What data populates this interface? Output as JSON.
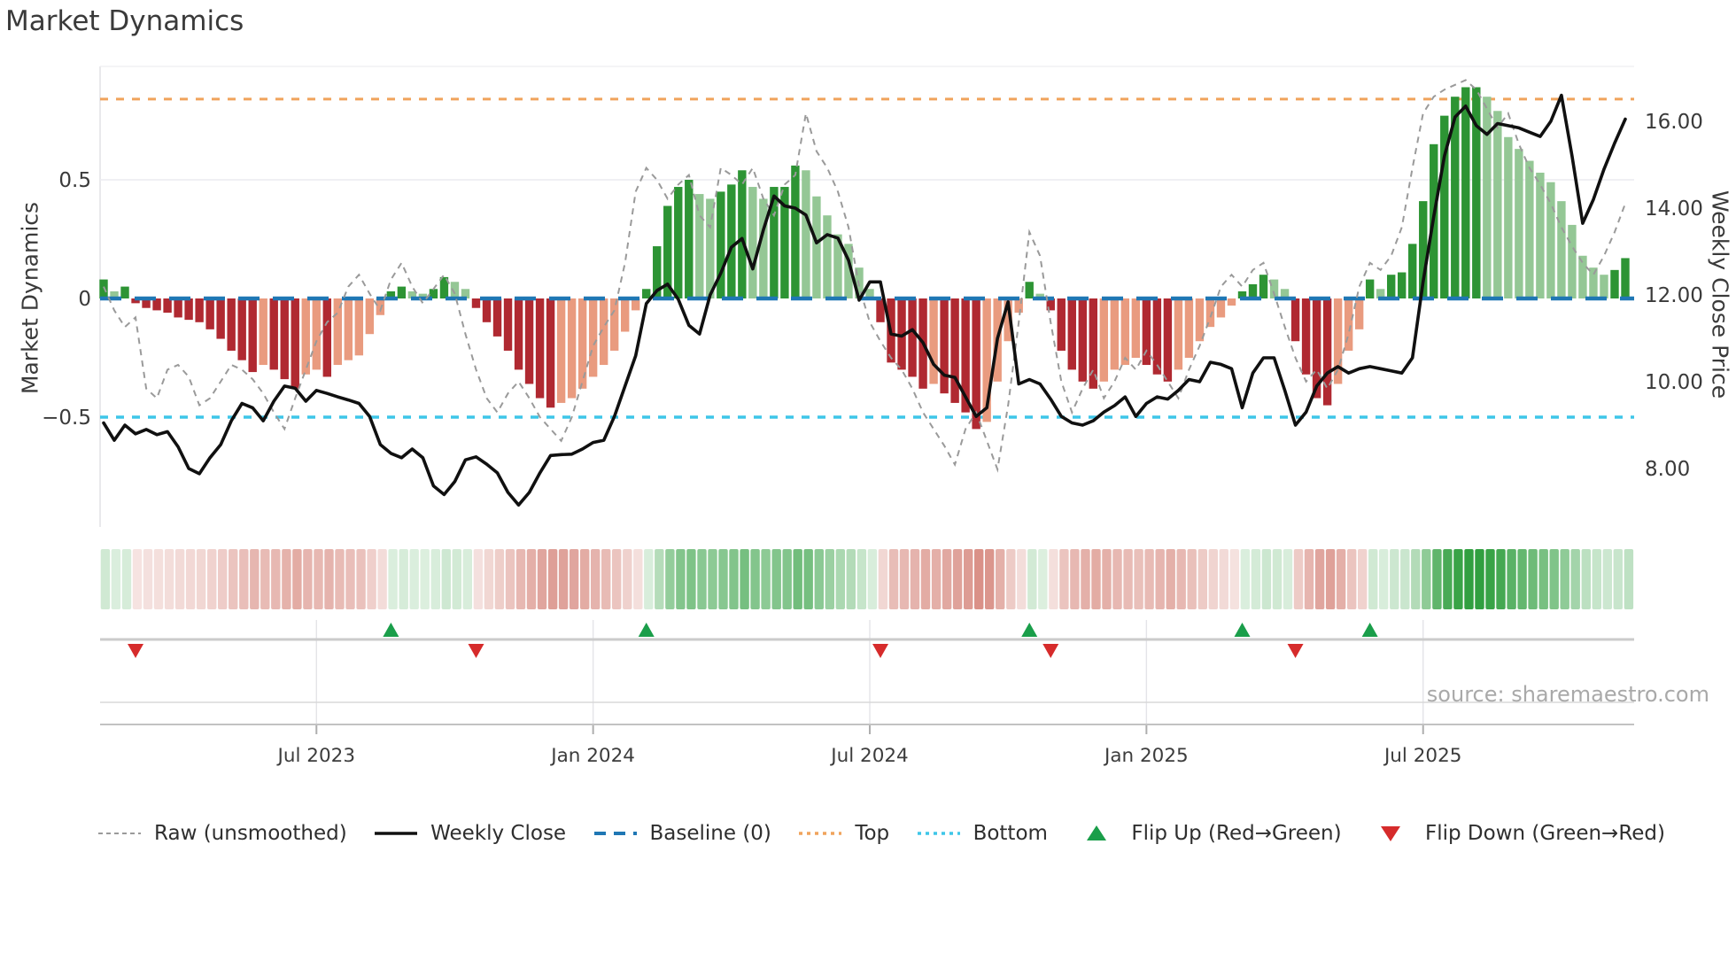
{
  "title": "Market Dynamics",
  "source": "source: sharemaestro.com",
  "axes": {
    "left_label": "Market Dynamics",
    "right_label": "Weekly Close Price",
    "left_ticks": [
      {
        "label": "0.5",
        "value": 0.5
      },
      {
        "label": "0",
        "value": 0
      },
      {
        "label": "−0.5",
        "value": -0.5
      }
    ],
    "right_ticks": [
      {
        "label": "16.00",
        "value": 16
      },
      {
        "label": "14.00",
        "value": 14
      },
      {
        "label": "12.00",
        "value": 12
      },
      {
        "label": "10.00",
        "value": 10
      },
      {
        "label": "8.00",
        "value": 8
      }
    ],
    "x_ticks": [
      {
        "label": "Jul 2023",
        "week": 20
      },
      {
        "label": "Jan 2024",
        "week": 46
      },
      {
        "label": "Jul 2024",
        "week": 72
      },
      {
        "label": "Jan 2025",
        "week": 98
      },
      {
        "label": "Jul 2025",
        "week": 124
      }
    ]
  },
  "legend": [
    {
      "label": "Raw (unsmoothed)",
      "swatch": "dash-gray"
    },
    {
      "label": "Weekly Close",
      "swatch": "solid-black"
    },
    {
      "label": "Baseline (0)",
      "swatch": "dash-blue"
    },
    {
      "label": "Top",
      "swatch": "dot-orange"
    },
    {
      "label": "Bottom",
      "swatch": "dot-cyan"
    },
    {
      "label": "Flip Up (Red→Green)",
      "swatch": "tri-up"
    },
    {
      "label": "Flip Down (Green→Red)",
      "swatch": "tri-down"
    }
  ],
  "colors": {
    "dark_green": "#2d9434",
    "light_green": "#94c795",
    "dark_red": "#b02931",
    "light_red": "#e99b7f",
    "baseline": "#1f77b4",
    "top": "#f0a35c",
    "bottom": "#3ec6e8",
    "raw": "#9a9a9a",
    "price": "#101010",
    "flip_up": "#1a9e4a",
    "flip_down": "#d62b2b",
    "grid": "#ececf0",
    "spine": "#dddde2"
  },
  "chart_data": {
    "type": "bar",
    "title": "Market Dynamics",
    "xlabel": "",
    "ylabel_left": "Market Dynamics",
    "ylabel_right": "Weekly Close Price",
    "x_is_weekly": true,
    "n_weeks": 144,
    "baseline": 0,
    "top_line": 0.84,
    "bottom_line": -0.5,
    "left_ylim": [
      -0.97,
      0.97
    ],
    "right_ylim": [
      7.0,
      17.3
    ],
    "flip_up_weeks": [
      27,
      51,
      87,
      107,
      119
    ],
    "flip_down_weeks": [
      3,
      35,
      73,
      89,
      112
    ],
    "series": [
      {
        "name": "Market Dynamics (smoothed bars)",
        "type": "bar",
        "axis": "left",
        "values": [
          0.08,
          0.03,
          0.05,
          -0.02,
          -0.04,
          -0.05,
          -0.06,
          -0.08,
          -0.09,
          -0.1,
          -0.13,
          -0.17,
          -0.22,
          -0.26,
          -0.31,
          -0.28,
          -0.3,
          -0.34,
          -0.38,
          -0.32,
          -0.3,
          -0.33,
          -0.28,
          -0.26,
          -0.24,
          -0.15,
          -0.07,
          0.03,
          0.05,
          0.03,
          0.02,
          0.04,
          0.09,
          0.07,
          0.04,
          -0.04,
          -0.1,
          -0.16,
          -0.22,
          -0.3,
          -0.36,
          -0.42,
          -0.46,
          -0.44,
          -0.42,
          -0.38,
          -0.33,
          -0.28,
          -0.22,
          -0.14,
          -0.05,
          0.04,
          0.22,
          0.39,
          0.47,
          0.5,
          0.44,
          0.42,
          0.45,
          0.48,
          0.54,
          0.47,
          0.42,
          0.47,
          0.47,
          0.56,
          0.54,
          0.43,
          0.35,
          0.27,
          0.23,
          0.13,
          0.04,
          -0.1,
          -0.27,
          -0.3,
          -0.33,
          -0.38,
          -0.36,
          -0.4,
          -0.44,
          -0.48,
          -0.55,
          -0.52,
          -0.35,
          -0.18,
          -0.06,
          0.07,
          0.02,
          -0.05,
          -0.22,
          -0.3,
          -0.35,
          -0.38,
          -0.35,
          -0.3,
          -0.28,
          -0.25,
          -0.28,
          -0.32,
          -0.35,
          -0.3,
          -0.25,
          -0.18,
          -0.12,
          -0.08,
          -0.03,
          0.03,
          0.06,
          0.1,
          0.08,
          0.04,
          -0.18,
          -0.32,
          -0.42,
          -0.45,
          -0.36,
          -0.22,
          -0.13,
          0.08,
          0.04,
          0.1,
          0.11,
          0.23,
          0.41,
          0.65,
          0.77,
          0.85,
          0.89,
          0.89,
          0.85,
          0.79,
          0.68,
          0.63,
          0.58,
          0.53,
          0.49,
          0.41,
          0.31,
          0.18,
          0.13,
          0.1,
          0.12,
          0.17
        ]
      },
      {
        "name": "Raw (unsmoothed)",
        "type": "line",
        "axis": "left",
        "values": [
          0.05,
          -0.05,
          -0.12,
          -0.08,
          -0.38,
          -0.42,
          -0.3,
          -0.28,
          -0.33,
          -0.45,
          -0.42,
          -0.35,
          -0.28,
          -0.3,
          -0.34,
          -0.4,
          -0.48,
          -0.55,
          -0.42,
          -0.3,
          -0.18,
          -0.1,
          -0.06,
          0.05,
          0.1,
          0.02,
          -0.05,
          0.08,
          0.15,
          0.05,
          -0.02,
          0.04,
          0.1,
          0.02,
          -0.15,
          -0.3,
          -0.42,
          -0.48,
          -0.4,
          -0.35,
          -0.42,
          -0.5,
          -0.55,
          -0.6,
          -0.5,
          -0.35,
          -0.2,
          -0.12,
          -0.05,
          0.15,
          0.45,
          0.55,
          0.5,
          0.42,
          0.48,
          0.52,
          0.35,
          0.3,
          0.55,
          0.52,
          0.48,
          0.55,
          0.42,
          0.35,
          0.48,
          0.52,
          0.78,
          0.62,
          0.55,
          0.45,
          0.3,
          0.05,
          -0.1,
          -0.18,
          -0.25,
          -0.3,
          -0.38,
          -0.48,
          -0.55,
          -0.62,
          -0.7,
          -0.55,
          -0.48,
          -0.6,
          -0.72,
          -0.45,
          -0.1,
          0.28,
          0.18,
          -0.1,
          -0.35,
          -0.48,
          -0.38,
          -0.3,
          -0.42,
          -0.35,
          -0.25,
          -0.3,
          -0.22,
          -0.28,
          -0.35,
          -0.42,
          -0.3,
          -0.2,
          -0.08,
          0.05,
          0.1,
          0.05,
          0.12,
          0.15,
          0.02,
          -0.12,
          -0.25,
          -0.35,
          -0.3,
          -0.38,
          -0.3,
          -0.15,
          0.05,
          0.15,
          0.12,
          0.18,
          0.3,
          0.55,
          0.78,
          0.85,
          0.88,
          0.9,
          0.92,
          0.88,
          0.8,
          0.72,
          0.78,
          0.65,
          0.55,
          0.48,
          0.4,
          0.3,
          0.22,
          0.15,
          0.1,
          0.18,
          0.28,
          0.4
        ]
      },
      {
        "name": "Weekly Close",
        "type": "line",
        "axis": "right",
        "values": [
          9.05,
          8.65,
          9.0,
          8.8,
          8.9,
          8.78,
          8.85,
          8.5,
          8.0,
          7.88,
          8.25,
          8.55,
          9.1,
          9.5,
          9.4,
          9.1,
          9.55,
          9.9,
          9.85,
          9.55,
          9.8,
          9.73,
          9.65,
          9.58,
          9.5,
          9.2,
          8.55,
          8.35,
          8.25,
          8.45,
          8.25,
          7.6,
          7.4,
          7.7,
          8.2,
          8.27,
          8.1,
          7.9,
          7.45,
          7.16,
          7.45,
          7.9,
          8.3,
          8.32,
          8.33,
          8.45,
          8.6,
          8.65,
          9.2,
          9.9,
          10.6,
          11.8,
          12.1,
          12.25,
          11.9,
          11.3,
          11.1,
          12.0,
          12.5,
          13.1,
          13.3,
          12.6,
          13.5,
          14.28,
          14.05,
          14.0,
          13.84,
          13.2,
          13.39,
          13.31,
          12.8,
          11.88,
          12.3,
          12.3,
          11.1,
          11.05,
          11.2,
          10.9,
          10.4,
          10.15,
          10.1,
          9.65,
          9.2,
          9.4,
          11.0,
          11.84,
          9.95,
          10.05,
          9.95,
          9.6,
          9.2,
          9.05,
          9.0,
          9.1,
          9.3,
          9.45,
          9.65,
          9.2,
          9.5,
          9.65,
          9.6,
          9.8,
          10.05,
          10.0,
          10.45,
          10.4,
          10.3,
          9.4,
          10.2,
          10.55,
          10.55,
          9.8,
          9.0,
          9.3,
          9.9,
          10.2,
          10.35,
          10.2,
          10.3,
          10.35,
          10.3,
          10.25,
          10.2,
          10.55,
          12.3,
          13.8,
          15.2,
          16.1,
          16.35,
          15.9,
          15.7,
          15.95,
          15.9,
          15.85,
          15.75,
          15.65,
          16.0,
          16.6,
          15.2,
          13.65,
          14.2,
          14.9,
          15.5,
          16.05
        ]
      }
    ]
  }
}
